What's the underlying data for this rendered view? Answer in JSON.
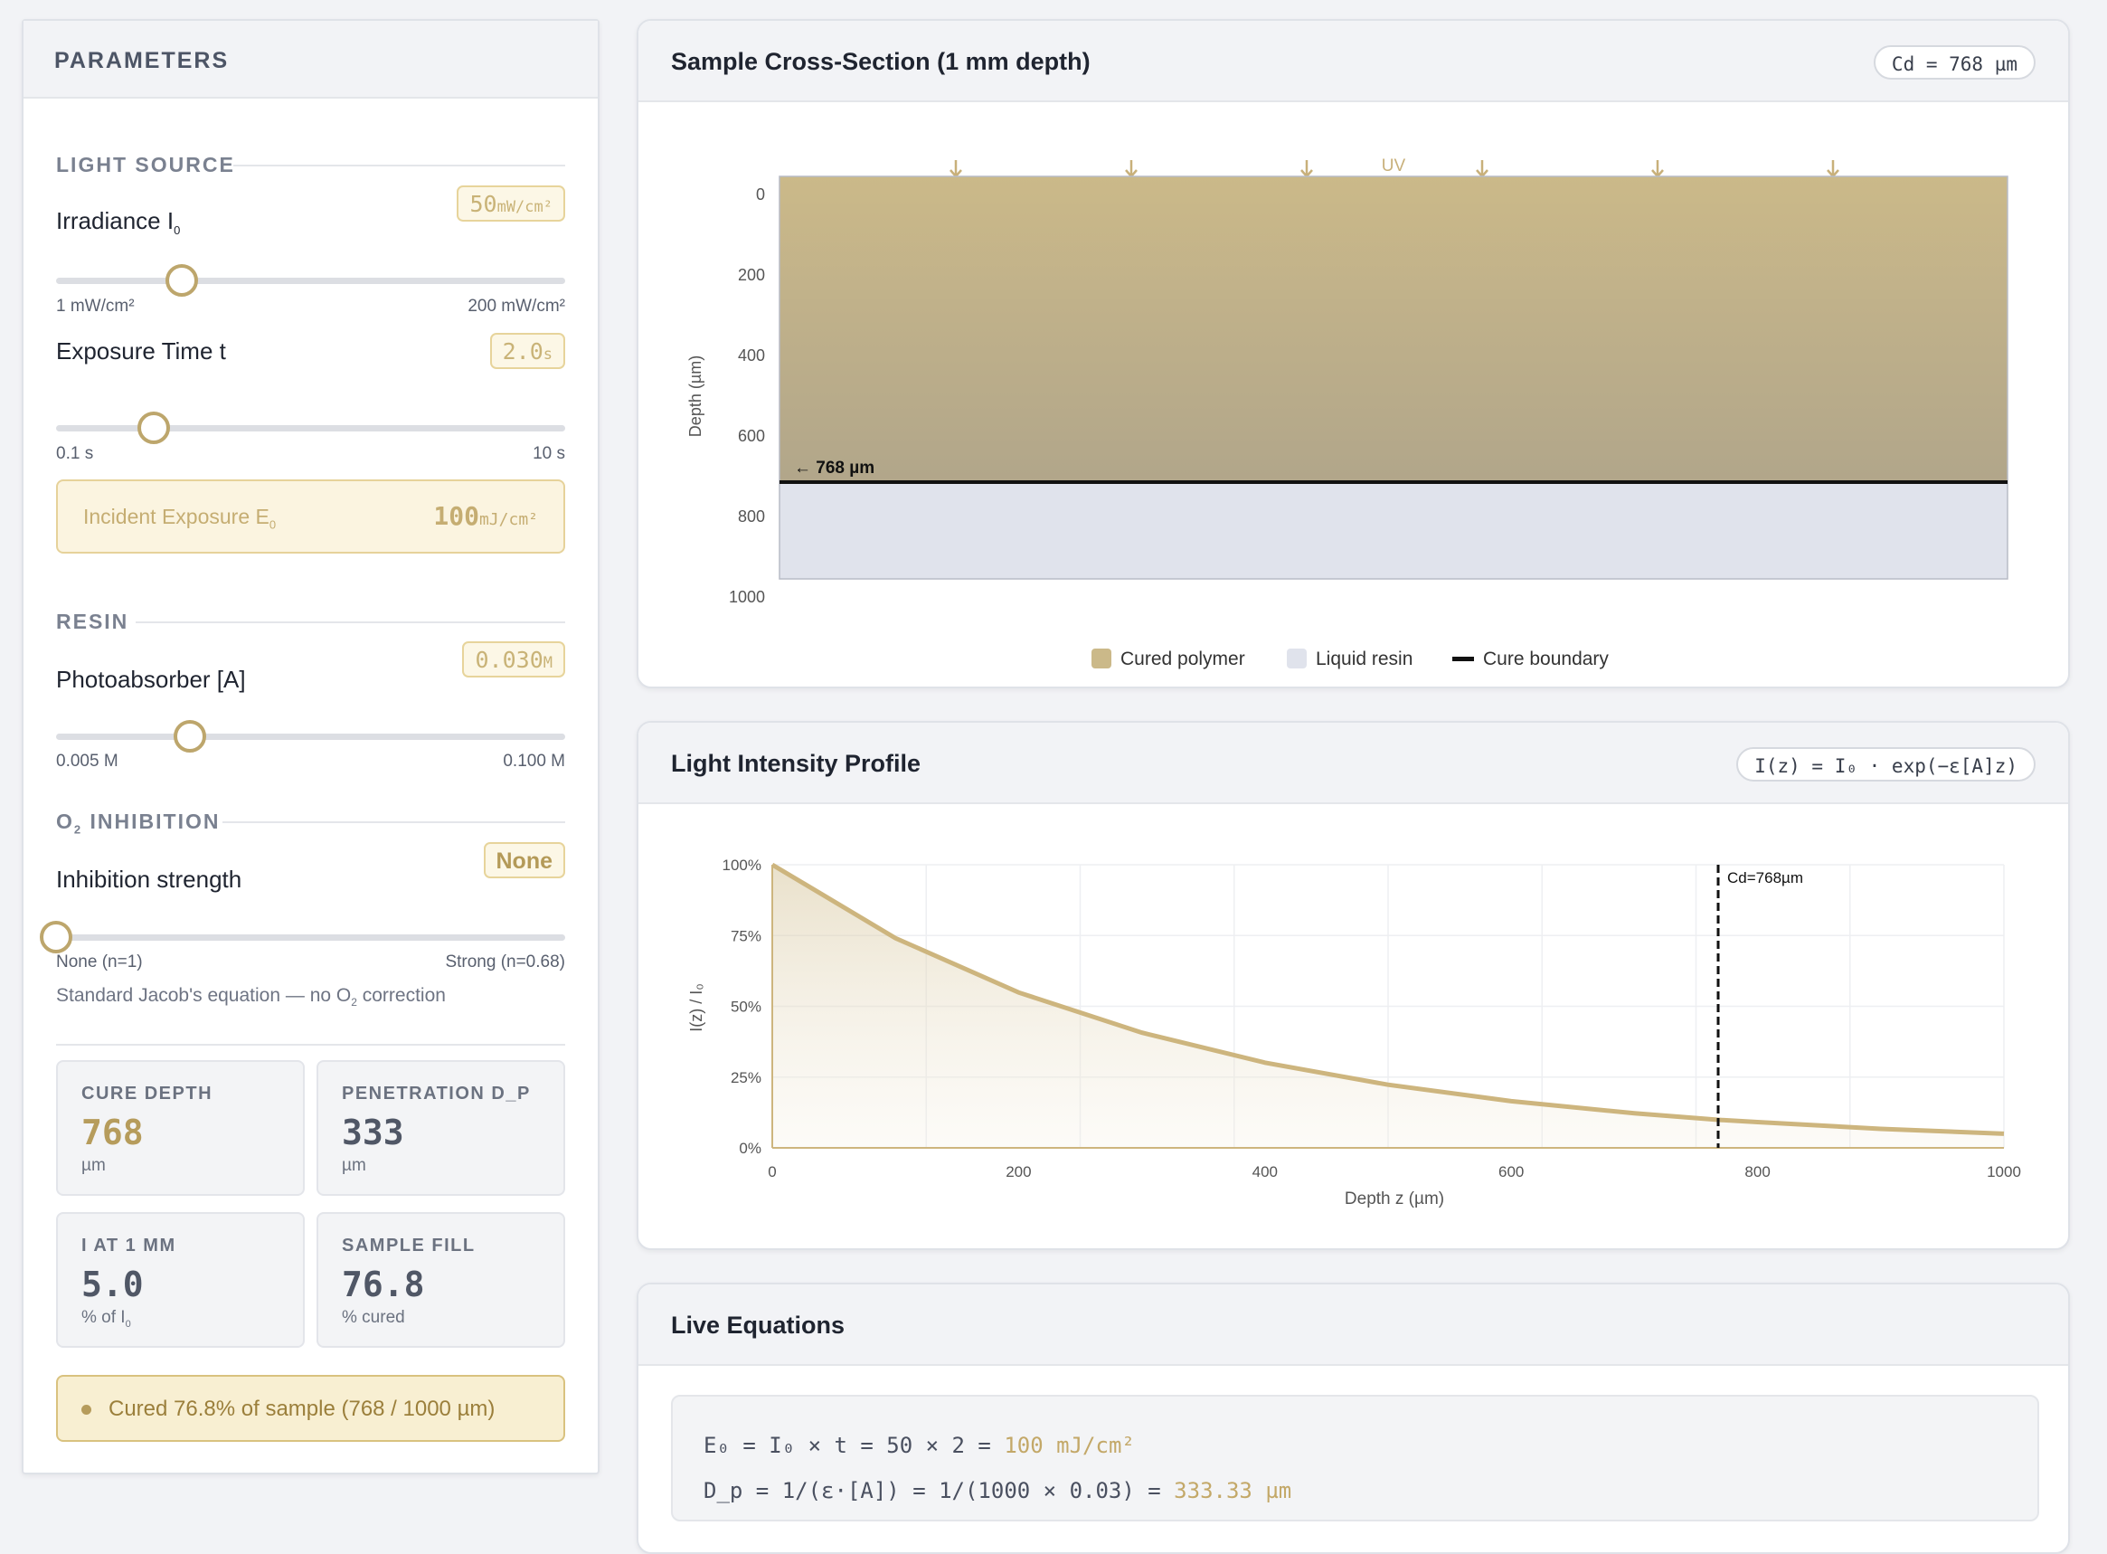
{
  "params": {
    "title": "PARAMETERS",
    "light_source": {
      "section": "LIGHT SOURCE",
      "irradiance": {
        "label": "Irradiance I",
        "sub": "0",
        "value": "50",
        "unit": "mW/cm²",
        "min_label": "1 mW/cm²",
        "max_label": "200 mW/cm²",
        "min": 1,
        "max": 200,
        "current": 50
      },
      "exposure": {
        "label": "Exposure Time t",
        "value": "2.0",
        "unit": "s",
        "min_label": "0.1 s",
        "max_label": "10 s",
        "min": 0.1,
        "max": 10,
        "current": 2.0
      },
      "incident": {
        "label": "Incident Exposure E",
        "sub": "0",
        "value": "100",
        "unit": "mJ/cm²"
      }
    },
    "resin": {
      "section": "RESIN",
      "photoabsorber": {
        "label": "Photoabsorber [A]",
        "value": "0.030",
        "unit": "M",
        "min_label": "0.005 M",
        "max_label": "0.100 M",
        "min": 0.005,
        "max": 0.1,
        "current": 0.03
      }
    },
    "o2": {
      "section_pre": "O",
      "section_sub": "2",
      "section_post": " INHIBITION",
      "label": "Inhibition strength",
      "value": "None",
      "min_label": "None (n=1)",
      "max_label": "Strong (n=0.68)",
      "fraction": 0,
      "note_pre": "Standard Jacob's equation — no O",
      "note_sub": "2",
      "note_post": " correction"
    },
    "stats": [
      {
        "title": "CURE DEPTH",
        "value": "768",
        "unit": "µm",
        "unit_sub": ""
      },
      {
        "title": "PENETRATION D_P",
        "value": "333",
        "unit": "µm",
        "unit_sub": ""
      },
      {
        "title": "I AT 1 MM",
        "value": "5.0",
        "unit": "% of I",
        "unit_sub": "0"
      },
      {
        "title": "SAMPLE FILL",
        "value": "76.8",
        "unit": "% cured",
        "unit_sub": ""
      }
    ],
    "status": "Cured 76.8% of sample (768 / 1000 µm)"
  },
  "cross_section": {
    "title": "Sample Cross-Section (1 mm depth)",
    "badge": "Cd = 768 µm",
    "uv_label": "UV",
    "boundary_label": "← 768 µm",
    "y_axis_label": "Depth (µm)",
    "y_ticks": [
      "0",
      "200",
      "400",
      "600",
      "800",
      "1000"
    ],
    "legend": [
      "Cured polymer",
      "Liquid resin",
      "Cure boundary"
    ],
    "colors": {
      "cured_top": "#cbb989",
      "cured_bottom": "#a9a08b",
      "liquid": "#e0e3ec",
      "boundary": "#111111"
    }
  },
  "intensity": {
    "title": "Light Intensity Profile",
    "badge": "I(z) = I₀ · exp(−ε[A]z)",
    "cd_label": "Cd=768µm",
    "x_axis_label": "Depth z (µm)",
    "y_axis_label": "I(z) / I₀",
    "x_ticks": [
      "0",
      "200",
      "400",
      "600",
      "800",
      "1000"
    ],
    "y_ticks": [
      "100%",
      "75%",
      "50%",
      "25%",
      "0%"
    ]
  },
  "chart_data": {
    "type": "area",
    "x": [
      0,
      100,
      200,
      300,
      400,
      500,
      600,
      700,
      768,
      800,
      900,
      1000
    ],
    "series": [
      {
        "values": [
          100,
          74.1,
          54.9,
          40.7,
          30.1,
          22.3,
          16.5,
          12.2,
          9.9,
          9.1,
          6.7,
          5.0
        ]
      }
    ],
    "xlabel": "Depth z (µm)",
    "ylabel": "I(z) / I₀",
    "xlim": [
      0,
      1000
    ],
    "ylim": [
      0,
      100
    ],
    "cure_depth": 768,
    "grid": true
  },
  "equations": {
    "title": "Live Equations",
    "lines": [
      {
        "text": "E₀ = I₀ × t = 50 × 2 = ",
        "result": "100 mJ/cm²"
      },
      {
        "text": "D_p = 1/(ε·[A]) = 1/(1000 × 0.03) = ",
        "result": "333.33 µm"
      }
    ]
  }
}
